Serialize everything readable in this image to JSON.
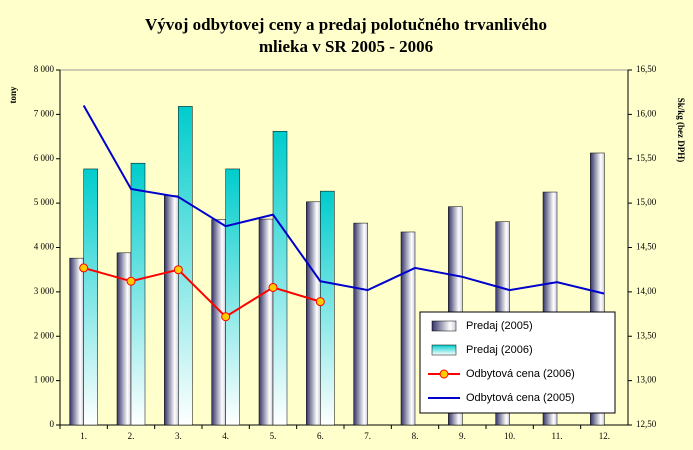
{
  "chart_data": {
    "type": "bar_line",
    "title": [
      "Vývoj odbytovej ceny a predaj polotučného trvanlivého",
      "mlieka v SR 2005 - 2006"
    ],
    "y_label": "tony",
    "y2_label": "Sk/kg (bez DPH)",
    "categories": [
      "1.",
      "2.",
      "3.",
      "4.",
      "5.",
      "6.",
      "7.",
      "8.",
      "9.",
      "10.",
      "11.",
      "12."
    ],
    "series": [
      {
        "name": "Predaj (2005)",
        "type": "bar",
        "color": "#333366",
        "values": [
          3760,
          3880,
          5170,
          4630,
          4640,
          5030,
          4550,
          4350,
          4920,
          4580,
          5250,
          6130
        ]
      },
      {
        "name": "Predaj (2006)",
        "type": "bar",
        "color": "#00cccc",
        "values": [
          5770,
          5900,
          7180,
          5770,
          6620,
          5270,
          null,
          null,
          null,
          null,
          null,
          null
        ]
      },
      {
        "name": "Odbytová cena (2006)",
        "type": "line",
        "axis": "y2",
        "color": "#ff0000",
        "marker_color": "#ffcc00",
        "values": [
          14.27,
          14.12,
          14.25,
          13.72,
          14.05,
          13.89,
          null,
          null,
          null,
          null,
          null,
          null
        ]
      },
      {
        "name": "Odbytová cena (2005)",
        "type": "line",
        "axis": "y2",
        "color": "#0000cc",
        "values": [
          16.1,
          15.16,
          15.07,
          14.74,
          14.87,
          14.12,
          14.02,
          14.27,
          14.17,
          14.02,
          14.11,
          13.98
        ]
      }
    ],
    "ylim": [
      0,
      8000
    ],
    "yticks": [
      {
        "value": 0,
        "label": "0"
      },
      {
        "value": 1000,
        "label": "1 000"
      },
      {
        "value": 2000,
        "label": "2 000"
      },
      {
        "value": 3000,
        "label": "3 000"
      },
      {
        "value": 4000,
        "label": "4 000"
      },
      {
        "value": 5000,
        "label": "5 000"
      },
      {
        "value": 6000,
        "label": "6 000"
      },
      {
        "value": 7000,
        "label": "7 000"
      },
      {
        "value": 8000,
        "label": "8 000"
      }
    ],
    "y2lim": [
      12.5,
      16.5
    ],
    "y2ticks": [
      {
        "value": 12.5,
        "label": "12,50"
      },
      {
        "value": 13,
        "label": "13,00"
      },
      {
        "value": 13.5,
        "label": "13,50"
      },
      {
        "value": 14,
        "label": "14,00"
      },
      {
        "value": 14.5,
        "label": "14,50"
      },
      {
        "value": 15,
        "label": "15,00"
      },
      {
        "value": 15.5,
        "label": "15,50"
      },
      {
        "value": 16,
        "label": "16,00"
      },
      {
        "value": 16.5,
        "label": "16,50"
      }
    ],
    "legend": "lower right"
  }
}
